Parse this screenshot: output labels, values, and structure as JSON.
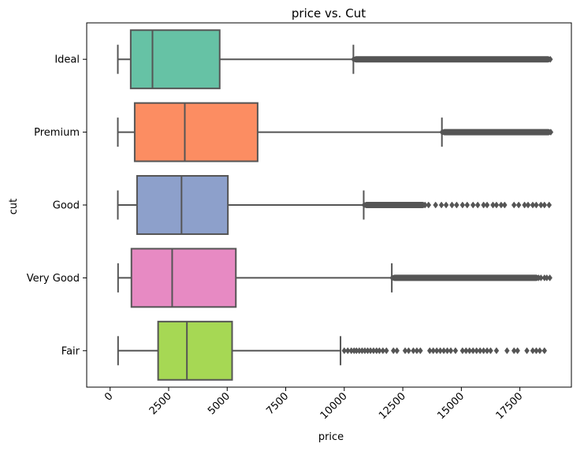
{
  "chart_data": {
    "type": "boxplot",
    "orientation": "horizontal",
    "title": "price vs. Cut",
    "xlabel": "price",
    "ylabel": "cut",
    "xlim": [
      -1000,
      19700
    ],
    "xticks": [
      0,
      2500,
      5000,
      7500,
      10000,
      12500,
      15000,
      17500
    ],
    "xtick_labels": [
      "0",
      "2500",
      "5000",
      "7500",
      "10000",
      "12500",
      "15000",
      "17500"
    ],
    "xtick_rotation": 45,
    "grid": false,
    "legend": "none",
    "box_edge_color": "#555555",
    "outlier_color": "#555555",
    "categories": [
      "Ideal",
      "Premium",
      "Good",
      "Very Good",
      "Fair"
    ],
    "boxes": [
      {
        "category": "Ideal",
        "color": "#66c2a5",
        "whisker_low": 330,
        "q1": 880,
        "median": 1810,
        "q3": 4680,
        "whisker_high": 10390,
        "outlier_band": [
          10400,
          18800
        ],
        "outliers": []
      },
      {
        "category": "Premium",
        "color": "#fc8d62",
        "whisker_low": 330,
        "q1": 1050,
        "median": 3190,
        "q3": 6300,
        "whisker_high": 14170,
        "outlier_band": [
          14180,
          18820
        ],
        "outliers": []
      },
      {
        "category": "Good",
        "color": "#8da0cb",
        "whisker_low": 330,
        "q1": 1150,
        "median": 3050,
        "q3": 5030,
        "whisker_high": 10830,
        "outlier_band": [
          10850,
          13450
        ],
        "outliers": [
          13600,
          13900,
          14150,
          14350,
          14600,
          14800,
          15050,
          15250,
          15500,
          15700,
          15950,
          16100,
          16350,
          16500,
          16700,
          16850,
          17250,
          17450,
          17700,
          17850,
          18050,
          18200,
          18400,
          18550,
          18750
        ]
      },
      {
        "category": "Very Good",
        "color": "#e78ac3",
        "whisker_low": 340,
        "q1": 910,
        "median": 2650,
        "q3": 5370,
        "whisker_high": 12030,
        "outlier_band": [
          12050,
          18300
        ],
        "outliers": [
          18400,
          18550,
          18650,
          18780
        ]
      },
      {
        "category": "Fair",
        "color": "#a6d854",
        "whisker_low": 340,
        "q1": 2050,
        "median": 3280,
        "q3": 5210,
        "whisker_high": 9840,
        "outlier_band": [],
        "outliers": [
          10000,
          10150,
          10300,
          10420,
          10520,
          10640,
          10760,
          10880,
          11000,
          11120,
          11250,
          11380,
          11500,
          11650,
          11800,
          12100,
          12250,
          12600,
          12750,
          12950,
          13100,
          13250,
          13650,
          13800,
          13950,
          14100,
          14250,
          14400,
          14550,
          14750,
          15050,
          15200,
          15350,
          15500,
          15650,
          15800,
          15950,
          16100,
          16250,
          16500,
          16950,
          17250,
          17400,
          17800,
          18050,
          18200,
          18350,
          18550
        ]
      }
    ]
  }
}
